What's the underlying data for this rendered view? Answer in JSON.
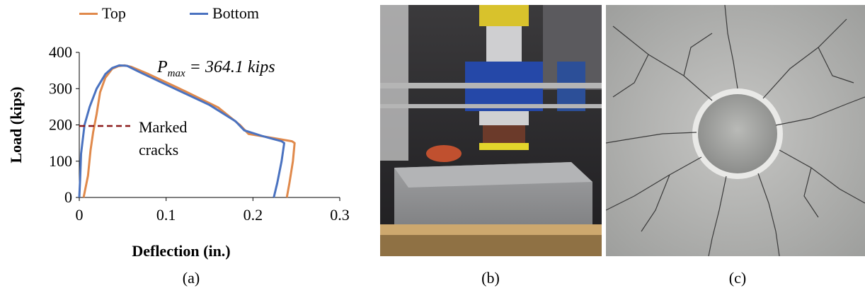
{
  "colors": {
    "top": "#e0894b",
    "bottom": "#4a72c0",
    "marked_line": "#8b1a1a"
  },
  "chart_data": {
    "type": "line",
    "xlabel": "Deflection (in.)",
    "ylabel": "Load (kips)",
    "xlim": [
      0,
      0.3
    ],
    "ylim": [
      0,
      400
    ],
    "x_ticks": [
      "0",
      "0.1",
      "0.2",
      "0.3"
    ],
    "y_ticks": [
      "0",
      "100",
      "200",
      "300",
      "400"
    ],
    "legend": "top",
    "grid": false,
    "series": [
      {
        "name": "Top",
        "color": "#e0894b",
        "points": [
          [
            0.005,
            0
          ],
          [
            0.01,
            60
          ],
          [
            0.013,
            130
          ],
          [
            0.016,
            180
          ],
          [
            0.02,
            230
          ],
          [
            0.024,
            290
          ],
          [
            0.03,
            330
          ],
          [
            0.038,
            355
          ],
          [
            0.045,
            362
          ],
          [
            0.052,
            364.1
          ],
          [
            0.06,
            360
          ],
          [
            0.08,
            340
          ],
          [
            0.12,
            295
          ],
          [
            0.16,
            248
          ],
          [
            0.185,
            200
          ],
          [
            0.195,
            175
          ],
          [
            0.22,
            165
          ],
          [
            0.245,
            155
          ],
          [
            0.248,
            150
          ],
          [
            0.246,
            100
          ],
          [
            0.242,
            40
          ],
          [
            0.239,
            0
          ]
        ]
      },
      {
        "name": "Bottom",
        "color": "#4a72c0",
        "points": [
          [
            0.0,
            0
          ],
          [
            0.001,
            50
          ],
          [
            0.002,
            120
          ],
          [
            0.006,
            200
          ],
          [
            0.012,
            250
          ],
          [
            0.02,
            300
          ],
          [
            0.03,
            340
          ],
          [
            0.038,
            357
          ],
          [
            0.046,
            364
          ],
          [
            0.055,
            363
          ],
          [
            0.07,
            345
          ],
          [
            0.11,
            300
          ],
          [
            0.15,
            255
          ],
          [
            0.18,
            210
          ],
          [
            0.19,
            185
          ],
          [
            0.21,
            170
          ],
          [
            0.233,
            155
          ],
          [
            0.236,
            150
          ],
          [
            0.233,
            100
          ],
          [
            0.228,
            40
          ],
          [
            0.224,
            0
          ]
        ]
      }
    ],
    "annotations": [
      {
        "text": "Marked cracks",
        "y": 197
      },
      {
        "text": "P_max = 364.1 kips"
      }
    ]
  },
  "figure": {
    "pmax_p": "P",
    "pmax_sub": "max",
    "pmax_rest": " = 364.1 kips",
    "marked_line1": "Marked",
    "marked_line2": "cracks",
    "caption_a": "(a)",
    "caption_b": "(b)",
    "caption_c": "(c)"
  }
}
